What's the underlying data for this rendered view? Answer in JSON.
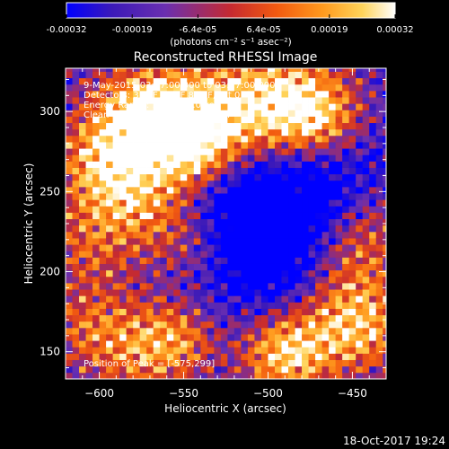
{
  "colorbar": {
    "tick_labels": [
      "-0.00032",
      "-0.00019",
      "-6.4e-05",
      "6.4e-05",
      "0.00019",
      "0.00032"
    ],
    "unit_label": "(photons cm⁻² s⁻¹ asec⁻²)"
  },
  "footer": {
    "timestamp": "18-Oct-2017 19:24"
  },
  "chart_data": {
    "type": "heatmap",
    "title": "Reconstructed RHESSI Image",
    "xlabel": "Heliocentric X (arcsec)",
    "ylabel": "Heliocentric Y (arcsec)",
    "xlim": [
      -620,
      -430
    ],
    "ylim": [
      133,
      327
    ],
    "x_ticks": [
      -600,
      -550,
      -500,
      -450
    ],
    "y_ticks": [
      150,
      200,
      250,
      300
    ],
    "value_range": [
      -0.00032,
      0.00032
    ],
    "grid": false,
    "colormap": [
      "#0000ff",
      "#3c1ab8",
      "#6a2fb0",
      "#c62a30",
      "#f25a10",
      "#ff9a1e",
      "#ffd45a",
      "#ffffff"
    ],
    "info_lines": [
      "9-May-2015 03:17:00.000 to 03:27:00.000",
      "Detectors: 3F 5F 6F 7F 8F 9F, Att 0",
      "Energy Range: 12.0 - 25.0 keV",
      "Clean      Total counts: 2.18E+04"
    ],
    "peak_annotation": "Position of Peak = [-575,299]",
    "peak_position": [
      -575,
      299
    ],
    "total_counts": "2.18E+04"
  }
}
